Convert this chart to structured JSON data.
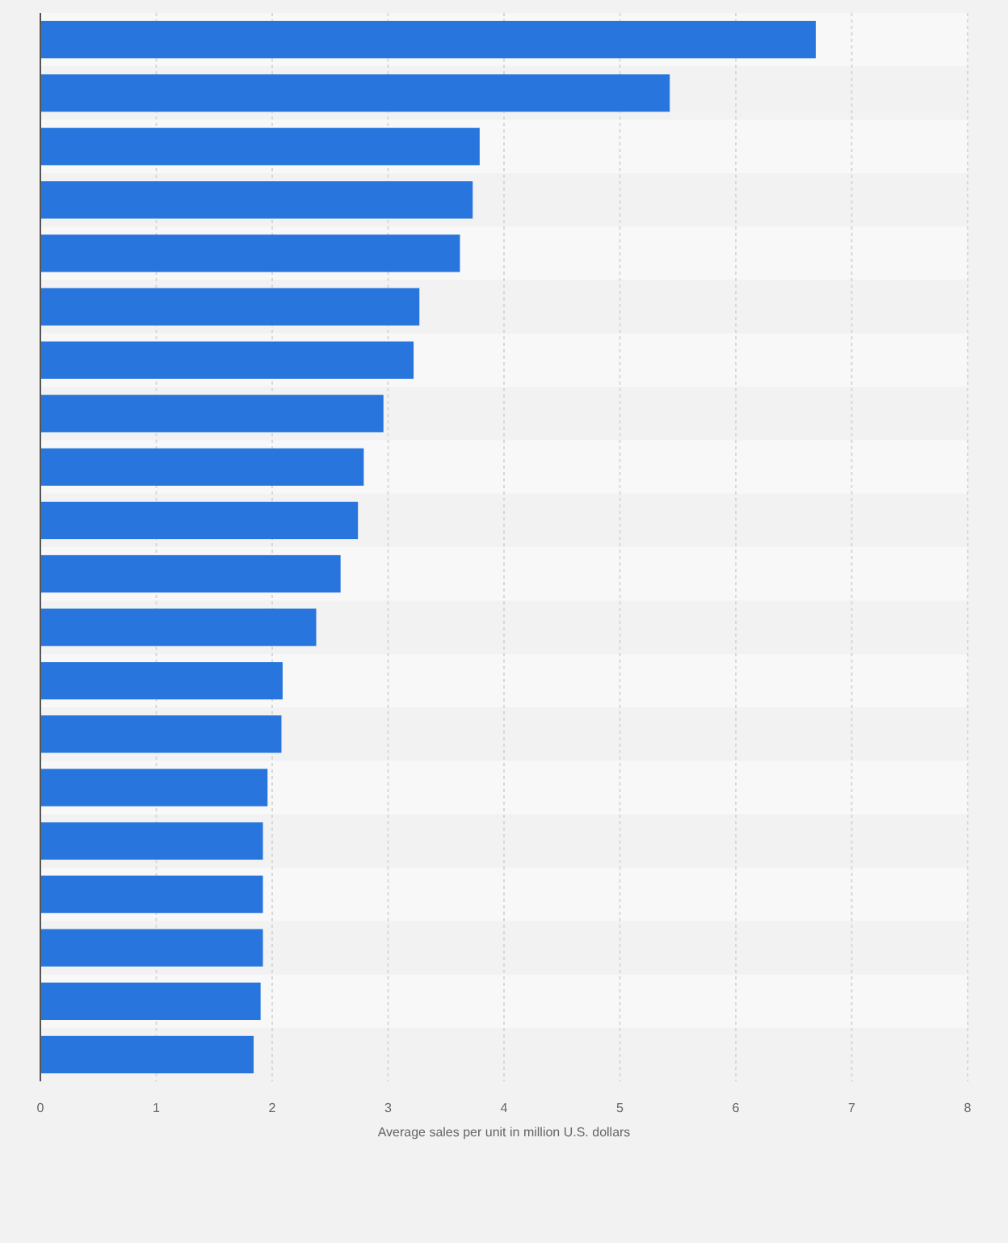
{
  "chart_data": {
    "type": "bar",
    "orientation": "horizontal",
    "xlabel": "Average sales per unit in million U.S. dollars",
    "categories": [
      null,
      null,
      null,
      null,
      null,
      null,
      null,
      null,
      null,
      null,
      null,
      null,
      null,
      null,
      null,
      null,
      null,
      null,
      null,
      null
    ],
    "values": [
      6.69,
      5.43,
      3.79,
      3.73,
      3.62,
      3.27,
      3.22,
      2.96,
      2.79,
      2.74,
      2.59,
      2.38,
      2.09,
      2.08,
      1.96,
      1.92,
      1.92,
      1.92,
      1.9,
      1.84
    ],
    "color": "#2876dd",
    "xlim": [
      0,
      8
    ],
    "xticks": [
      0,
      1,
      2,
      3,
      4,
      5,
      6,
      7,
      8
    ],
    "grid": "x"
  }
}
